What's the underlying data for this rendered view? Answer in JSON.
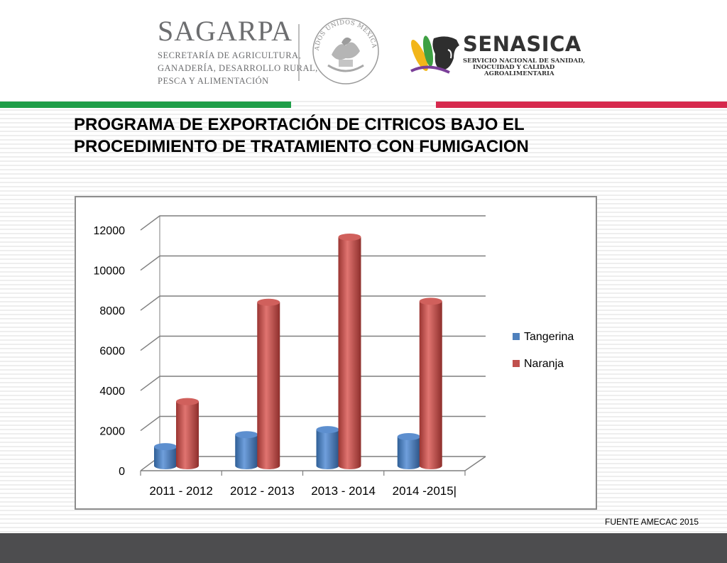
{
  "header": {
    "sagarpa": {
      "name": "SAGARPA",
      "lines": [
        "SECRETARÍA DE AGRICULTURA,",
        "GANADERÍA, DESARROLLO RURAL,",
        "PESCA Y ALIMENTACIÓN"
      ]
    },
    "seal_text": "ESTADOS UNIDOS MEXICANOS",
    "senasica": {
      "name": "SENASICA",
      "lines": [
        "SERVICIO NACIONAL DE SANIDAD,",
        "INOCUIDAD Y CALIDAD",
        "AGROALIMENTARIA"
      ]
    },
    "colors": {
      "green": "#1e9e48",
      "red": "#d6294d"
    }
  },
  "slide": {
    "title": "PROGRAMA DE EXPORTACIÓN DE CITRICOS BAJO EL PROCEDIMIENTO DE TRATAMIENTO CON FUMIGACION",
    "source": "FUENTE AMECAC 2015"
  },
  "chart_data": {
    "type": "bar",
    "style": "3d-cylinder",
    "categories": [
      "2011 - 2012",
      "2012 - 2013",
      "2013 - 2014",
      "2014 -2015|"
    ],
    "series": [
      {
        "name": "Tangerina",
        "values": [
          950,
          1550,
          1800,
          1450
        ],
        "color": "#4f81bd"
      },
      {
        "name": "Naranja",
        "values": [
          3200,
          8150,
          11400,
          8200
        ],
        "color": "#c0504d"
      }
    ],
    "yticks": [
      0,
      2000,
      4000,
      6000,
      8000,
      10000,
      12000
    ],
    "ylim": [
      0,
      12000
    ],
    "grid": true,
    "legend": "right"
  }
}
